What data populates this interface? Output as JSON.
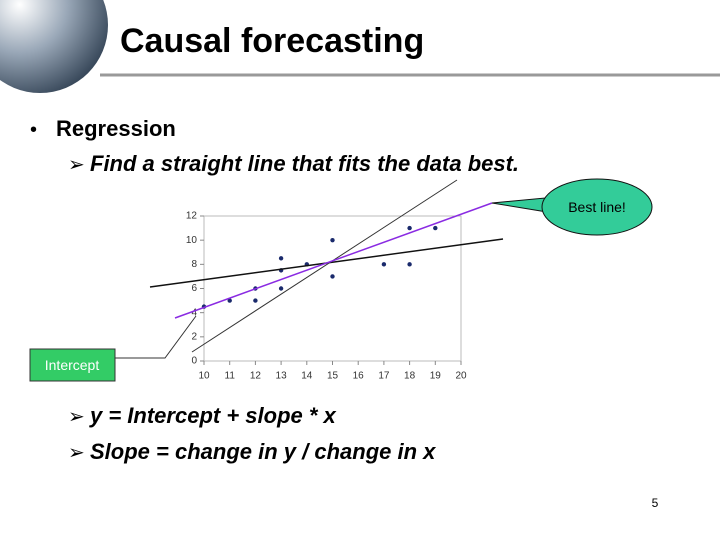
{
  "header": {
    "title": "Causal forecasting"
  },
  "bullets": [
    "Regression",
    "Find a straight line that fits the data best.",
    "y = Intercept + slope * x",
    "Slope = change in y / change in x"
  ],
  "callouts": {
    "best_line": "Best line!",
    "intercept": "Intercept"
  },
  "page_number": "5",
  "chart_data": {
    "type": "scatter",
    "color": "#1a2a6c",
    "x": [
      10,
      11,
      12,
      12,
      13,
      13,
      13,
      14,
      15,
      15,
      17,
      18,
      18,
      19
    ],
    "values": [
      4.5,
      5,
      6,
      5,
      8.5,
      7.5,
      6,
      8,
      10,
      7,
      8,
      11,
      8,
      11
    ],
    "xlim": [
      10,
      20
    ],
    "ylim": [
      0,
      12
    ],
    "xticks": [
      10,
      11,
      12,
      13,
      14,
      15,
      16,
      17,
      18,
      19,
      20
    ],
    "yticks": [
      0,
      2,
      4,
      6,
      8,
      10,
      12
    ]
  }
}
